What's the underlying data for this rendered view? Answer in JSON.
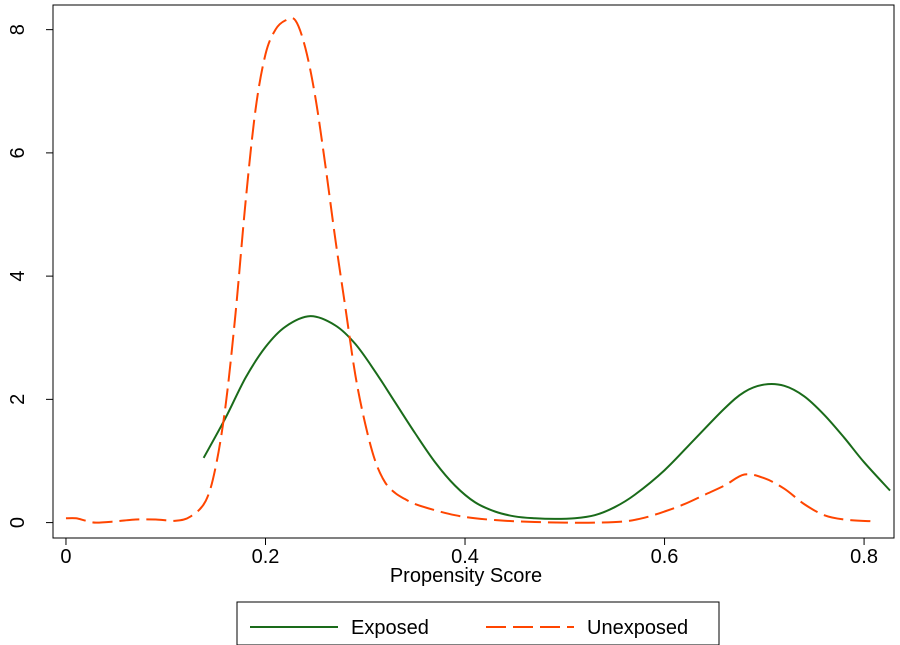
{
  "chart_data": {
    "type": "line",
    "title": "",
    "xlabel": "Propensity Score",
    "ylabel": "",
    "xlim": [
      -0.013,
      0.83
    ],
    "ylim": [
      -0.25,
      8.4
    ],
    "xticks": [
      0,
      0.2,
      0.4,
      0.6,
      0.8
    ],
    "xtick_labels": [
      "0",
      "0.2",
      "0.4",
      "0.6",
      "0.8"
    ],
    "yticks": [
      0,
      2,
      4,
      6,
      8
    ],
    "ytick_labels": [
      "0",
      "2",
      "4",
      "6",
      "8"
    ],
    "grid": false,
    "legend_position": "bottom",
    "series": [
      {
        "name": "Exposed",
        "color": "#1a6b1a",
        "style": "solid",
        "x": [
          0.138,
          0.16,
          0.18,
          0.2,
          0.22,
          0.245,
          0.27,
          0.29,
          0.31,
          0.33,
          0.35,
          0.37,
          0.39,
          0.41,
          0.43,
          0.45,
          0.47,
          0.49,
          0.51,
          0.53,
          0.55,
          0.57,
          0.6,
          0.63,
          0.66,
          0.68,
          0.7,
          0.72,
          0.74,
          0.76,
          0.78,
          0.8,
          0.826
        ],
        "y": [
          1.05,
          1.7,
          2.35,
          2.85,
          3.18,
          3.35,
          3.2,
          2.9,
          2.45,
          1.95,
          1.45,
          0.98,
          0.6,
          0.33,
          0.18,
          0.1,
          0.07,
          0.06,
          0.07,
          0.12,
          0.25,
          0.45,
          0.85,
          1.35,
          1.85,
          2.12,
          2.24,
          2.22,
          2.05,
          1.75,
          1.38,
          0.98,
          0.52
        ]
      },
      {
        "name": "Unexposed",
        "color": "#ff4500",
        "style": "dashed",
        "x": [
          0.0,
          0.01,
          0.02,
          0.03,
          0.05,
          0.07,
          0.09,
          0.11,
          0.125,
          0.14,
          0.15,
          0.16,
          0.17,
          0.18,
          0.19,
          0.2,
          0.21,
          0.22,
          0.23,
          0.24,
          0.25,
          0.26,
          0.27,
          0.28,
          0.29,
          0.3,
          0.31,
          0.32,
          0.33,
          0.34,
          0.35,
          0.37,
          0.39,
          0.41,
          0.44,
          0.47,
          0.5,
          0.53,
          0.56,
          0.58,
          0.6,
          0.62,
          0.64,
          0.66,
          0.68,
          0.7,
          0.72,
          0.74,
          0.76,
          0.78,
          0.81
        ],
        "y": [
          0.07,
          0.07,
          0.03,
          0.0,
          0.02,
          0.05,
          0.05,
          0.03,
          0.1,
          0.35,
          0.9,
          1.9,
          3.4,
          5.2,
          6.7,
          7.6,
          8.0,
          8.15,
          8.15,
          7.7,
          6.9,
          5.8,
          4.6,
          3.5,
          2.4,
          1.6,
          1.0,
          0.65,
          0.48,
          0.38,
          0.3,
          0.2,
          0.12,
          0.07,
          0.03,
          0.01,
          0.0,
          0.0,
          0.02,
          0.08,
          0.18,
          0.3,
          0.45,
          0.6,
          0.78,
          0.72,
          0.55,
          0.3,
          0.12,
          0.05,
          0.02
        ]
      }
    ]
  }
}
